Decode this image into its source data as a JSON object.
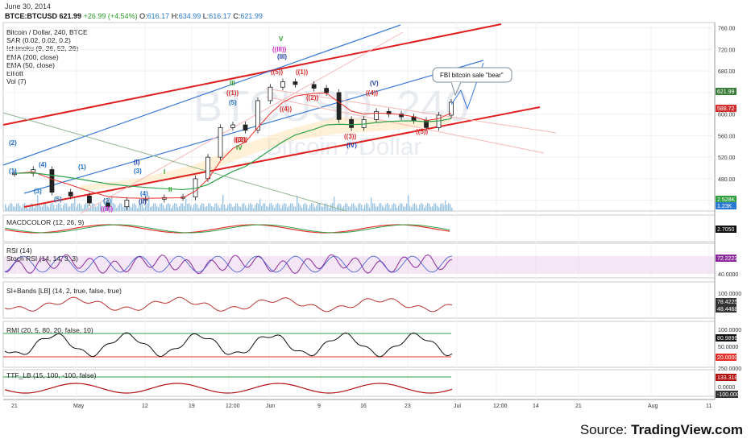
{
  "header": {
    "date": "June 30, 2014",
    "symbol": "BTCE:BTCUSD",
    "last": "621.99",
    "change": "+26.99 (+4.54%)",
    "open_label": "O:",
    "open": "616.17",
    "high_label": "H:",
    "high": "634.99",
    "low_label": "L:",
    "low": "616.17",
    "close_label": "C:",
    "close": "621.99"
  },
  "legend": {
    "title": "Bitcoin / Dollar, 240, BTCE",
    "lines": [
      "SAR (0.02, 0.02, 0.2)",
      "Ichimoku (9, 26, 52, 26)",
      "EMA (200, close)",
      "EMA (50, close)",
      "Elliott",
      "Vol (7)"
    ]
  },
  "watermark": {
    "big": "BTCUSD, 240",
    "small": "Bitcoin / Dollar"
  },
  "callout": "FBI bitcoin sale \"bear\"",
  "panes": {
    "macd": "MACDCOLOR (12, 26, 9)",
    "rsi": "RSI (14)",
    "stoch": "Stoch RSI (14, 14, 3, 3)",
    "sibands": "SI+Bands [LB] (14, 2, true, false, true)",
    "rmi": "RMI (20, 5, 80, 20, false, 10)",
    "ttf": "TTF_LB (15, 100, -100, false)"
  },
  "price_axis": {
    "ticks": [
      "760.00",
      "720.00",
      "680.00",
      "640.00",
      "600.00",
      "560.00",
      "520.00",
      "480.00",
      "440.00"
    ],
    "tags": [
      "621.99",
      "588.72",
      "2.528K",
      "1.23K"
    ],
    "tag_colors": [
      "#3a7d3a",
      "#d32f2f",
      "#2e9e3e",
      "#2a7ad2"
    ]
  },
  "macd_axis": {
    "tags": [
      "2.7050"
    ]
  },
  "rsi_axis": {
    "ticks": [
      "40.0000"
    ],
    "tags": [
      "72.2223"
    ]
  },
  "sib_axis": {
    "ticks": [
      "100.0000"
    ],
    "tags": [
      "78.4225",
      "48.4468"
    ]
  },
  "rmi_axis": {
    "ticks": [
      "100.0000",
      "50.0000"
    ],
    "tags": [
      "80.9896",
      "20.0000"
    ]
  },
  "ttf_axis": {
    "ticks": [
      "250.0000",
      "0.0000"
    ],
    "tags": [
      "133.3187",
      "-100.0000"
    ]
  },
  "time_axis": [
    "21",
    "May",
    "12",
    "19",
    "12:00",
    "Jun",
    "9",
    "16",
    "23",
    "Jul",
    "12:00",
    "14",
    "21",
    "Aug",
    "11"
  ],
  "elliott_labels": [
    {
      "t": "(2)",
      "c": "#1f6fc5"
    },
    {
      "t": "(1)",
      "c": "#1f6fc5"
    },
    {
      "t": "(3)",
      "c": "#1f6fc5"
    },
    {
      "t": "(4)",
      "c": "#1f6fc5"
    },
    {
      "t": "(5)",
      "c": "#1f6fc5"
    },
    {
      "t": "(1)",
      "c": "#1f6fc5"
    },
    {
      "t": "(2)",
      "c": "#1f6fc5"
    },
    {
      "t": "((II))",
      "c": "#c72fc7"
    },
    {
      "t": "(I)",
      "c": "#1f3fa5"
    },
    {
      "t": "(3)",
      "c": "#1f6fc5"
    },
    {
      "t": "I",
      "c": "#2e9e2e"
    },
    {
      "t": "(4)",
      "c": "#1f6fc5"
    },
    {
      "t": "(II)",
      "c": "#1f3fa5"
    },
    {
      "t": "II",
      "c": "#2e9e2e"
    },
    {
      "t": "III",
      "c": "#2e9e2e"
    },
    {
      "t": "((1))",
      "c": "#d32f2f"
    },
    {
      "t": "(5)",
      "c": "#1f6fc5"
    },
    {
      "t": "((2))",
      "c": "#d32f2f"
    },
    {
      "t": "IV",
      "c": "#2e9e2e"
    },
    {
      "t": "((III))",
      "c": "#c72fc7"
    },
    {
      "t": "(III)",
      "c": "#1f3fa5"
    },
    {
      "t": "V",
      "c": "#2e9e2e"
    },
    {
      "t": "((3))",
      "c": "#d32f2f"
    },
    {
      "t": "((5))",
      "c": "#d32f2f"
    },
    {
      "t": "((2))",
      "c": "#d32f2f"
    },
    {
      "t": "((4))",
      "c": "#d32f2f"
    },
    {
      "t": "((1))",
      "c": "#d32f2f"
    },
    {
      "t": "((3))",
      "c": "#d32f2f"
    },
    {
      "t": "(IV)",
      "c": "#1f3fa5"
    },
    {
      "t": "(V)",
      "c": "#1f3fa5"
    },
    {
      "t": "((4))",
      "c": "#d32f2f"
    },
    {
      "t": "((5))",
      "c": "#d32f2f"
    }
  ],
  "source": {
    "prefix": "Source: ",
    "brand": "TradingView.com"
  },
  "chart_data": {
    "type": "candlestick",
    "symbol": "BTCE:BTCUSD",
    "interval": "240",
    "close_series": [
      {
        "date": "2014-04-21",
        "close": 490
      },
      {
        "date": "2014-04-24",
        "close": 497
      },
      {
        "date": "2014-04-27",
        "close": 455
      },
      {
        "date": "2014-04-30",
        "close": 448
      },
      {
        "date": "2014-05-03",
        "close": 435
      },
      {
        "date": "2014-05-06",
        "close": 428
      },
      {
        "date": "2014-05-09",
        "close": 440
      },
      {
        "date": "2014-05-12",
        "close": 442
      },
      {
        "date": "2014-05-15",
        "close": 445
      },
      {
        "date": "2014-05-18",
        "close": 446
      },
      {
        "date": "2014-05-20",
        "close": 480
      },
      {
        "date": "2014-05-22",
        "close": 520
      },
      {
        "date": "2014-05-24",
        "close": 575
      },
      {
        "date": "2014-05-26",
        "close": 580
      },
      {
        "date": "2014-05-28",
        "close": 570
      },
      {
        "date": "2014-05-30",
        "close": 625
      },
      {
        "date": "2014-06-01",
        "close": 650
      },
      {
        "date": "2014-06-03",
        "close": 660
      },
      {
        "date": "2014-06-05",
        "close": 655
      },
      {
        "date": "2014-06-08",
        "close": 648
      },
      {
        "date": "2014-06-10",
        "close": 640
      },
      {
        "date": "2014-06-12",
        "close": 590
      },
      {
        "date": "2014-06-14",
        "close": 575
      },
      {
        "date": "2014-06-16",
        "close": 590
      },
      {
        "date": "2014-06-18",
        "close": 605
      },
      {
        "date": "2014-06-20",
        "close": 600
      },
      {
        "date": "2014-06-22",
        "close": 595
      },
      {
        "date": "2014-06-24",
        "close": 588
      },
      {
        "date": "2014-06-26",
        "close": 575
      },
      {
        "date": "2014-06-28",
        "close": 598
      },
      {
        "date": "2014-06-30",
        "close": 621.99
      }
    ],
    "last": {
      "open": 616.17,
      "high": 634.99,
      "low": 616.17,
      "close": 621.99,
      "change": 26.99,
      "change_pct": 4.54
    },
    "ylim": [
      420,
      770
    ],
    "volume_last": [
      "2.528K",
      "1.23K"
    ]
  }
}
